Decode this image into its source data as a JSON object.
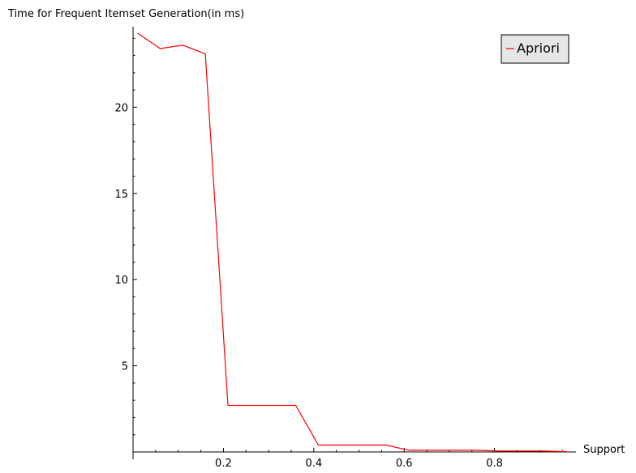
{
  "chart_data": {
    "type": "line",
    "ylabel": "Time for Frequent Itemset Generation(in ms)",
    "xlabel": "Support",
    "xlim": [
      0.0,
      0.97
    ],
    "ylim": [
      0,
      24.5
    ],
    "x_ticks": [
      0.2,
      0.4,
      0.6,
      0.8
    ],
    "x_tick_labels": [
      "0.2",
      "0.4",
      "0.6",
      "0.8"
    ],
    "y_ticks": [
      5,
      10,
      15,
      20
    ],
    "y_tick_labels": [
      "5",
      "10",
      "15",
      "20"
    ],
    "grid": false,
    "legend_position": "top-right",
    "series": [
      {
        "name": "Apriori",
        "color": "#ff0000",
        "x": [
          0.01,
          0.06,
          0.11,
          0.16,
          0.21,
          0.26,
          0.31,
          0.36,
          0.41,
          0.46,
          0.51,
          0.56,
          0.61,
          0.66,
          0.71,
          0.76,
          0.81,
          0.86,
          0.91,
          0.96
        ],
        "y": [
          24.3,
          23.4,
          23.6,
          23.1,
          2.7,
          2.7,
          2.7,
          2.7,
          0.4,
          0.4,
          0.4,
          0.4,
          0.1,
          0.1,
          0.1,
          0.1,
          0.05,
          0.05,
          0.05,
          0.02
        ]
      }
    ]
  }
}
